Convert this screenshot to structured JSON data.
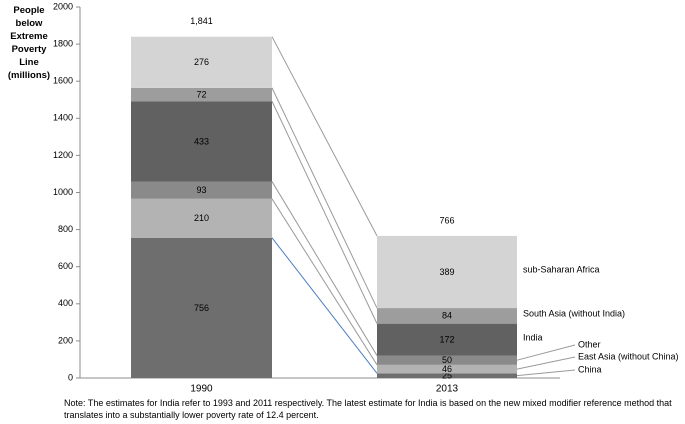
{
  "chart_data": {
    "type": "bar",
    "stacked": true,
    "title": "",
    "ylabel": "People below Extreme Poverty Line (millions)",
    "xlabel": "",
    "ylim": [
      0,
      2000
    ],
    "yticks": [
      0,
      200,
      400,
      600,
      800,
      1000,
      1200,
      1400,
      1600,
      1800,
      2000
    ],
    "categories": [
      "1990",
      "2013"
    ],
    "totals": [
      "1,841",
      "766"
    ],
    "series": [
      {
        "name": "China",
        "values": [
          756,
          25
        ],
        "color": "#6e6e6e"
      },
      {
        "name": "East Asia (without China)",
        "values": [
          210,
          46
        ],
        "color": "#b3b3b3"
      },
      {
        "name": "Other",
        "values": [
          93,
          50
        ],
        "color": "#8a8a8a"
      },
      {
        "name": "India",
        "values": [
          433,
          172
        ],
        "color": "#616161"
      },
      {
        "name": "South Asia (without India)",
        "values": [
          72,
          84
        ],
        "color": "#9d9d9d"
      },
      {
        "name": "sub-Saharan Africa",
        "values": [
          276,
          389
        ],
        "color": "#d4d4d4"
      }
    ],
    "grid": false,
    "legend": "right, labels at series"
  },
  "axis": {
    "ylabel_lines": [
      "People",
      "below",
      "Extreme",
      "Poverty Line",
      "(millions)"
    ]
  },
  "note": "Note: The estimates for India refer to 1993 and 2011 respectively. The latest estimate for India is based on the new mixed modifier reference method that translates into a substantially lower poverty rate of 12.4 percent."
}
